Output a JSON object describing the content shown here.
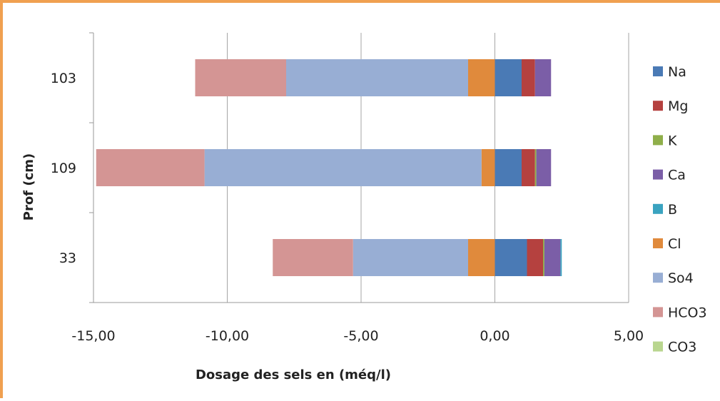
{
  "chart_data": {
    "type": "bar",
    "orientation": "horizontal",
    "stacked": true,
    "categories": [
      "103",
      "109",
      "33"
    ],
    "xlabel": "Dosage des sels en (méq/l)",
    "ylabel": "Prof (cm)",
    "xlim": [
      -15,
      5
    ],
    "xticks": [
      "-15,00",
      "-10,00",
      "-5,00",
      "0,00",
      "5,00"
    ],
    "grid": "vertical",
    "legend_position": "right",
    "series": [
      {
        "name": "Na",
        "color": "#4a7ab5",
        "values": [
          1.0,
          1.0,
          1.2
        ]
      },
      {
        "name": "Mg",
        "color": "#b5413f",
        "values": [
          0.5,
          0.5,
          0.6
        ]
      },
      {
        "name": "K",
        "color": "#8faf4a",
        "values": [
          0.0,
          0.05,
          0.05
        ]
      },
      {
        "name": "Ca",
        "color": "#7b5ea7",
        "values": [
          0.6,
          0.55,
          0.6
        ]
      },
      {
        "name": "B",
        "color": "#3aa3c0",
        "values": [
          0.0,
          0.0,
          0.05
        ]
      },
      {
        "name": "Cl",
        "color": "#e08a3c",
        "values": [
          -1.0,
          -0.5,
          -1.0
        ]
      },
      {
        "name": "So4",
        "color": "#98aed4",
        "values": [
          -6.8,
          -10.35,
          -4.3
        ]
      },
      {
        "name": "HCO3",
        "color": "#d49594",
        "values": [
          -3.4,
          -4.05,
          -3.0
        ]
      },
      {
        "name": "CO3",
        "color": "#b9d68f",
        "values": [
          0.0,
          0.0,
          0.0
        ]
      }
    ]
  }
}
